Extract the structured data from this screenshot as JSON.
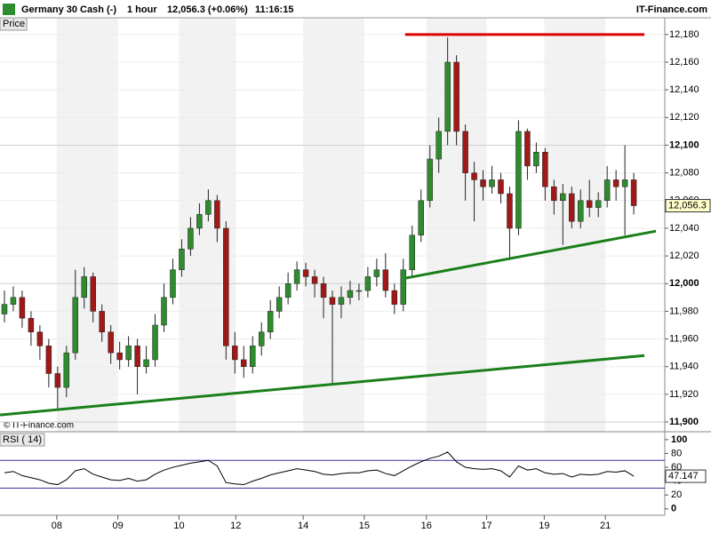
{
  "header": {
    "instrument": "Germany 30 Cash (-)",
    "timeframe": "1 hour",
    "quote": "12,056.3 (+0.06%)",
    "time": "11:16:15",
    "brand": "IT-Finance.com",
    "price_tab": "Price",
    "copyright": "© IT-Finance.com"
  },
  "chart_data": [
    {
      "type": "candlestick",
      "up_color": "#2e8b2e",
      "down_color": "#a01818",
      "xlim": [
        0,
        75
      ],
      "ylim": [
        11893.6,
        12192.1
      ],
      "yticks": [
        {
          "value": 11900,
          "label": "11,900"
        },
        {
          "value": 11920,
          "label": "11,920"
        },
        {
          "value": 11940,
          "label": "11,940"
        },
        {
          "value": 11960,
          "label": "11,960"
        },
        {
          "value": 11980,
          "label": "11,980"
        },
        {
          "value": 12000,
          "label": "12,000"
        },
        {
          "value": 12020,
          "label": "12,020"
        },
        {
          "value": 12040,
          "label": "12,040"
        },
        {
          "value": 12060,
          "label": "12,060"
        },
        {
          "value": 12080,
          "label": "12,080"
        },
        {
          "value": 12100,
          "label": "12,100"
        },
        {
          "value": 12120,
          "label": "12,120"
        },
        {
          "value": 12140,
          "label": "12,140"
        },
        {
          "value": 12160,
          "label": "12,160"
        },
        {
          "value": 12180,
          "label": "12,180"
        }
      ],
      "open": [
        11978,
        11985,
        11990,
        11975,
        11965,
        11955,
        11935,
        11925,
        11950,
        11990,
        12005,
        11980,
        11965,
        11950,
        11945,
        11955,
        11940,
        11945,
        11970,
        11990,
        12010,
        12025,
        12040,
        12050,
        12060,
        12040,
        11955,
        11945,
        11940,
        11955,
        11965,
        11980,
        11990,
        12000,
        12010,
        12005,
        12000,
        11990,
        11985,
        11990,
        11995,
        11995,
        12005,
        12010,
        11995,
        11985,
        12010,
        12035,
        12060,
        12090,
        12110,
        12160,
        12110,
        12080,
        12075,
        12070,
        12075,
        12065,
        12040,
        12110,
        12085,
        12095,
        12070,
        12060,
        12065,
        12045,
        12060,
        12055,
        12060,
        12075,
        12070,
        12075
      ],
      "high": [
        11995,
        11998,
        11995,
        11980,
        11970,
        11960,
        11940,
        11955,
        12010,
        12012,
        12008,
        11985,
        11970,
        11958,
        11962,
        11960,
        11955,
        11978,
        12000,
        12018,
        12032,
        12048,
        12058,
        12068,
        12064,
        12045,
        11965,
        11955,
        11962,
        11972,
        11988,
        11998,
        12008,
        12016,
        12015,
        12010,
        12005,
        11995,
        11998,
        12002,
        12000,
        12012,
        12018,
        12022,
        12000,
        12018,
        12042,
        12068,
        12100,
        12120,
        12178,
        12165,
        12115,
        12088,
        12082,
        12085,
        12080,
        12070,
        12118,
        12112,
        12102,
        12098,
        12075,
        12072,
        12070,
        12068,
        12075,
        12066,
        12085,
        12082,
        12100,
        12080
      ],
      "low": [
        11972,
        11980,
        11968,
        11955,
        11945,
        11925,
        11910,
        11918,
        11945,
        11982,
        11972,
        11958,
        11942,
        11938,
        11940,
        11920,
        11935,
        11940,
        11965,
        11985,
        12005,
        12020,
        12035,
        12045,
        12030,
        11945,
        11935,
        11932,
        11935,
        11948,
        11960,
        11975,
        11985,
        11995,
        11998,
        11990,
        11975,
        11928,
        11975,
        11985,
        11988,
        11990,
        11998,
        11990,
        11978,
        11980,
        12005,
        12030,
        12055,
        12080,
        12100,
        12100,
        12060,
        12045,
        12060,
        12065,
        12058,
        12017,
        12035,
        12075,
        12080,
        12060,
        12050,
        12028,
        12040,
        12040,
        12048,
        12048,
        12055,
        12060,
        12035,
        12050
      ],
      "close": [
        11985,
        11990,
        11975,
        11965,
        11955,
        11935,
        11925,
        11950,
        11990,
        12005,
        11980,
        11965,
        11950,
        11945,
        11955,
        11940,
        11945,
        11970,
        11990,
        12010,
        12025,
        12040,
        12050,
        12060,
        12040,
        11955,
        11945,
        11940,
        11955,
        11965,
        11980,
        11990,
        12000,
        12010,
        12005,
        12000,
        11990,
        11985,
        11990,
        11995,
        11995,
        12005,
        12010,
        11995,
        11985,
        12010,
        12035,
        12060,
        12090,
        12110,
        12160,
        12110,
        12080,
        12075,
        12070,
        12075,
        12065,
        12040,
        12110,
        12085,
        12095,
        12070,
        12060,
        12065,
        12045,
        12060,
        12055,
        12060,
        12075,
        12070,
        12075,
        12056.3
      ],
      "last": {
        "value": 12056.3,
        "label": "12,056.3"
      },
      "lines": [
        {
          "color": "#dd0000",
          "x": [
            45.7,
            72.7
          ],
          "y": [
            12180,
            12180
          ]
        },
        {
          "color": "#1a7f1a",
          "x": [
            45.7,
            74
          ],
          "y": [
            12003.9,
            12037.9
          ]
        },
        {
          "color": "#1a7f1a",
          "x": [
            0,
            72.7
          ],
          "y": [
            11905.1,
            11948
          ]
        }
      ]
    },
    {
      "type": "line",
      "title": "RSI ( 14)",
      "color": "#000000",
      "level_color": "#333399",
      "xlim": [
        0,
        75
      ],
      "ylim": [
        -9.2,
        110.1
      ],
      "yticks": [
        100,
        80,
        60,
        40,
        20,
        0
      ],
      "levels": [
        70,
        30
      ],
      "xticks": [
        {
          "value": 6.4,
          "label": "08"
        },
        {
          "value": 13.3,
          "label": "09"
        },
        {
          "value": 20.2,
          "label": "10"
        },
        {
          "value": 26.6,
          "label": "12"
        },
        {
          "value": 34.2,
          "label": "14"
        },
        {
          "value": 41.1,
          "label": "15"
        },
        {
          "value": 48.1,
          "label": "16"
        },
        {
          "value": 54.9,
          "label": "17"
        },
        {
          "value": 61.4,
          "label": "19"
        },
        {
          "value": 68.3,
          "label": "21"
        }
      ],
      "values": [
        52,
        54,
        48,
        45,
        42,
        37,
        35,
        42,
        55,
        58,
        50,
        46,
        42,
        41,
        44,
        40,
        42,
        50,
        56,
        60,
        63,
        66,
        68,
        70,
        62,
        38,
        36,
        35,
        40,
        44,
        49,
        52,
        55,
        58,
        56,
        54,
        50,
        49,
        51,
        52,
        52,
        55,
        56,
        51,
        48,
        55,
        62,
        68,
        73,
        76,
        82,
        68,
        60,
        58,
        57,
        58,
        55,
        46,
        62,
        56,
        58,
        52,
        50,
        51,
        46,
        50,
        49,
        50,
        54,
        53,
        55,
        47.147
      ],
      "last": {
        "value": 47.147,
        "label": "47.147"
      }
    }
  ]
}
